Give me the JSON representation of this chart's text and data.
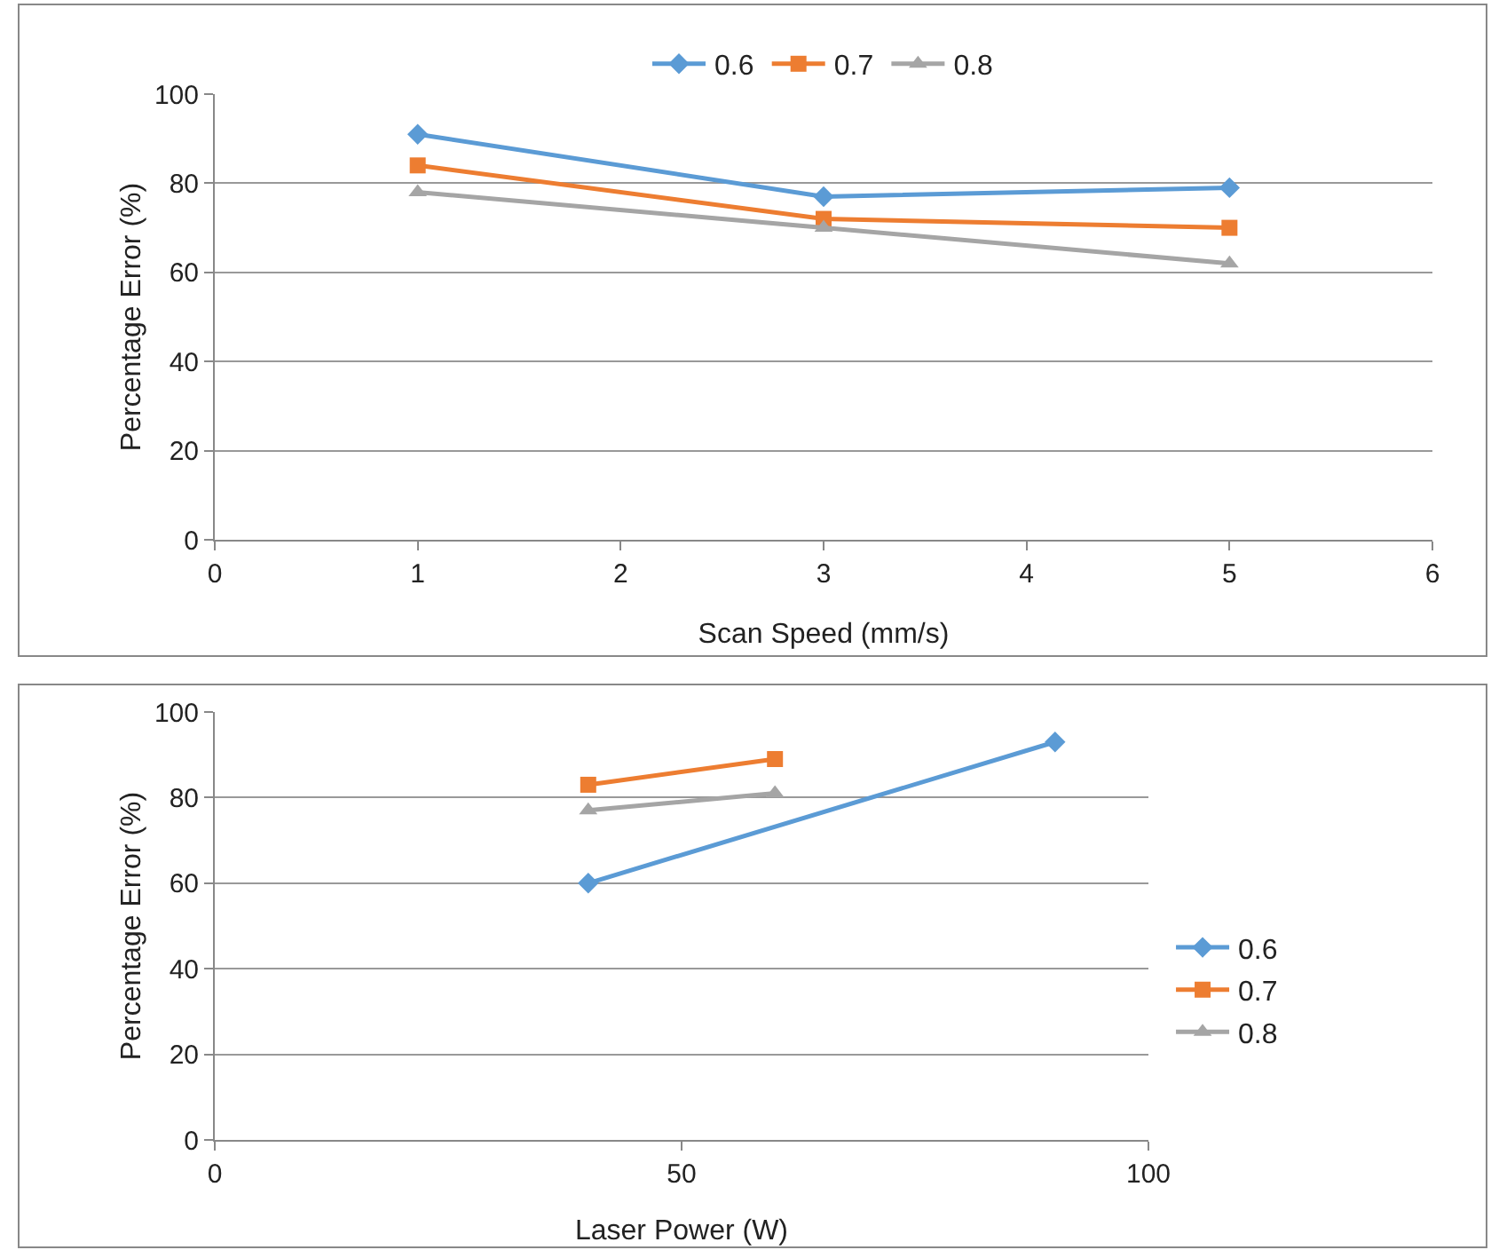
{
  "chart_data": [
    {
      "type": "line",
      "xlabel": "Scan Speed (mm/s)",
      "ylabel": "Percentage Error (%)",
      "xlim": [
        0,
        6
      ],
      "xticks": [
        0,
        1,
        2,
        3,
        4,
        5,
        6
      ],
      "ylim": [
        0,
        100
      ],
      "yticks": [
        0,
        20,
        40,
        60,
        80,
        100
      ],
      "grid": "y",
      "legend": "top",
      "x": [
        1,
        3,
        5
      ],
      "series": [
        {
          "name": "0.6",
          "color": "#5b9bd5",
          "marker": "diamond",
          "values": [
            91,
            77,
            79
          ]
        },
        {
          "name": "0.7",
          "color": "#ed7d31",
          "marker": "square",
          "values": [
            84,
            72,
            70
          ]
        },
        {
          "name": "0.8",
          "color": "#a5a5a5",
          "marker": "triangle",
          "values": [
            78,
            70,
            62
          ]
        }
      ]
    },
    {
      "type": "line",
      "xlabel": "Laser Power (W)",
      "ylabel": "Percentage Error (%)",
      "xlim": [
        0,
        100
      ],
      "xticks": [
        0,
        50,
        100
      ],
      "ylim": [
        0,
        100
      ],
      "yticks": [
        0,
        20,
        40,
        60,
        80,
        100
      ],
      "grid": "y",
      "legend": "right",
      "series": [
        {
          "name": "0.6",
          "color": "#5b9bd5",
          "marker": "diamond",
          "x": [
            40,
            90
          ],
          "values": [
            60,
            93
          ]
        },
        {
          "name": "0.7",
          "color": "#ed7d31",
          "marker": "square",
          "x": [
            40,
            60
          ],
          "values": [
            83,
            89
          ]
        },
        {
          "name": "0.8",
          "color": "#a5a5a5",
          "marker": "triangle",
          "x": [
            40,
            60
          ],
          "values": [
            77,
            81
          ]
        }
      ]
    }
  ]
}
